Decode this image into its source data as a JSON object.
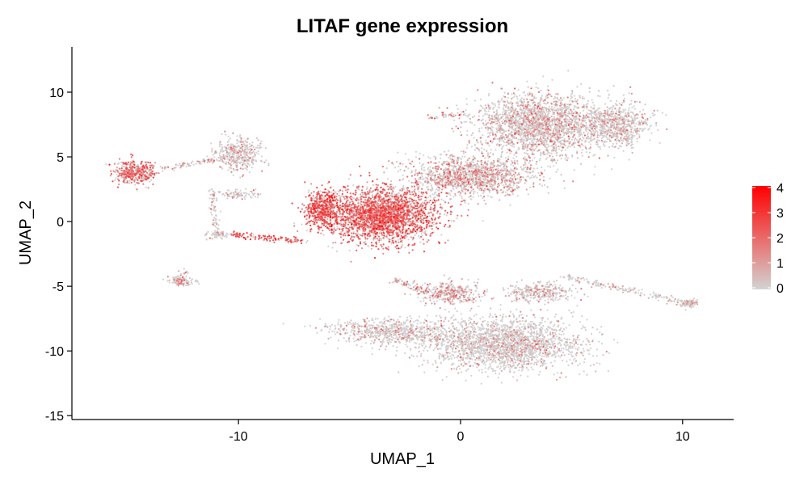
{
  "chart_data": {
    "type": "scatter",
    "title": "LITAF gene expression",
    "xlabel": "UMAP_1",
    "ylabel": "UMAP_2",
    "xlim": [
      -17.5,
      12.3
    ],
    "ylim": [
      -15.3,
      13.5
    ],
    "x_ticks": [
      -10,
      0,
      10
    ],
    "x_tick_labels": [
      "-10",
      "0",
      "10"
    ],
    "y_ticks": [
      -15,
      -10,
      -5,
      0,
      5,
      10
    ],
    "y_tick_labels": [
      "-15",
      "-10",
      "-5",
      "0",
      "5",
      "10"
    ],
    "grid": false,
    "legend": {
      "placement": "right",
      "type": "colorbar",
      "min": 0,
      "max": 4,
      "ticks": [
        0,
        1,
        2,
        3,
        4
      ],
      "tick_labels": [
        "0",
        "1",
        "2",
        "3",
        "4"
      ],
      "color_low": "#d3d3d3",
      "color_high": "#ff0000"
    },
    "colors": {
      "low": "#d3d3d3",
      "high": "#ff0000"
    },
    "clusters": [
      {
        "center": [
          -3.5,
          0.5
        ],
        "spread": [
          2.2,
          1.9
        ],
        "count": 2600,
        "mean_expr": 1.75
      },
      {
        "center": [
          -6.2,
          1.0
        ],
        "spread": [
          0.8,
          1.3
        ],
        "count": 500,
        "mean_expr": 2.0
      },
      {
        "center": [
          0.5,
          3.5
        ],
        "spread": [
          2.6,
          1.4
        ],
        "count": 1400,
        "mean_expr": 0.9
      },
      {
        "center": [
          3.5,
          7.5
        ],
        "spread": [
          2.6,
          2.2
        ],
        "count": 2200,
        "mean_expr": 0.7
      },
      {
        "center": [
          7.0,
          7.5
        ],
        "spread": [
          1.4,
          1.5
        ],
        "count": 700,
        "mean_expr": 0.55
      },
      {
        "center": [
          2.0,
          -9.5
        ],
        "spread": [
          3.2,
          1.8
        ],
        "count": 2200,
        "mean_expr": 0.4
      },
      {
        "center": [
          -3.0,
          -8.5
        ],
        "spread": [
          2.5,
          0.9
        ],
        "count": 700,
        "mean_expr": 0.5
      },
      {
        "center": [
          -0.5,
          -5.5
        ],
        "spread": [
          1.3,
          0.8
        ],
        "count": 350,
        "mean_expr": 0.9
      },
      {
        "center": [
          3.5,
          -5.5
        ],
        "spread": [
          1.4,
          0.6
        ],
        "count": 300,
        "mean_expr": 0.7
      },
      {
        "center": [
          -14.7,
          3.8
        ],
        "spread": [
          0.8,
          0.8
        ],
        "count": 450,
        "mean_expr": 1.5
      },
      {
        "center": [
          -10.0,
          5.2
        ],
        "spread": [
          0.9,
          1.2
        ],
        "count": 400,
        "mean_expr": 0.6
      },
      {
        "center": [
          -12.5,
          -4.6
        ],
        "spread": [
          0.6,
          0.3
        ],
        "count": 90,
        "mean_expr": 0.9
      },
      {
        "center": [
          10.3,
          -6.3
        ],
        "spread": [
          0.4,
          0.3
        ],
        "count": 90,
        "mean_expr": 0.4
      },
      {
        "center": [
          -11.0,
          -1.0
        ],
        "spread": [
          0.4,
          0.3
        ],
        "count": 60,
        "mean_expr": 0.4
      },
      {
        "center": [
          -10.0,
          2.1
        ],
        "spread": [
          0.8,
          0.3
        ],
        "count": 80,
        "mean_expr": 0.5
      }
    ],
    "bridges": [
      {
        "from": [
          -13.5,
          4.0
        ],
        "to": [
          -10.5,
          5.0
        ],
        "count": 80,
        "mean_expr": 1.0
      },
      {
        "from": [
          -10.5,
          -1.0
        ],
        "to": [
          -7.0,
          -1.5
        ],
        "count": 120,
        "mean_expr": 2.2
      },
      {
        "from": [
          4.5,
          -4.2
        ],
        "to": [
          10.0,
          -6.2
        ],
        "count": 150,
        "mean_expr": 0.5
      },
      {
        "from": [
          -11.2,
          2.5
        ],
        "to": [
          -11.0,
          -0.5
        ],
        "count": 60,
        "mean_expr": 0.4
      },
      {
        "from": [
          -12.3,
          -3.8
        ],
        "to": [
          -12.8,
          -4.6
        ],
        "count": 30,
        "mean_expr": 0.8
      },
      {
        "from": [
          -1.5,
          8.0
        ],
        "to": [
          0.5,
          8.3
        ],
        "count": 40,
        "mean_expr": 1.0
      },
      {
        "from": [
          -3.0,
          -4.5
        ],
        "to": [
          -1.5,
          -5.5
        ],
        "count": 60,
        "mean_expr": 0.9
      }
    ]
  }
}
